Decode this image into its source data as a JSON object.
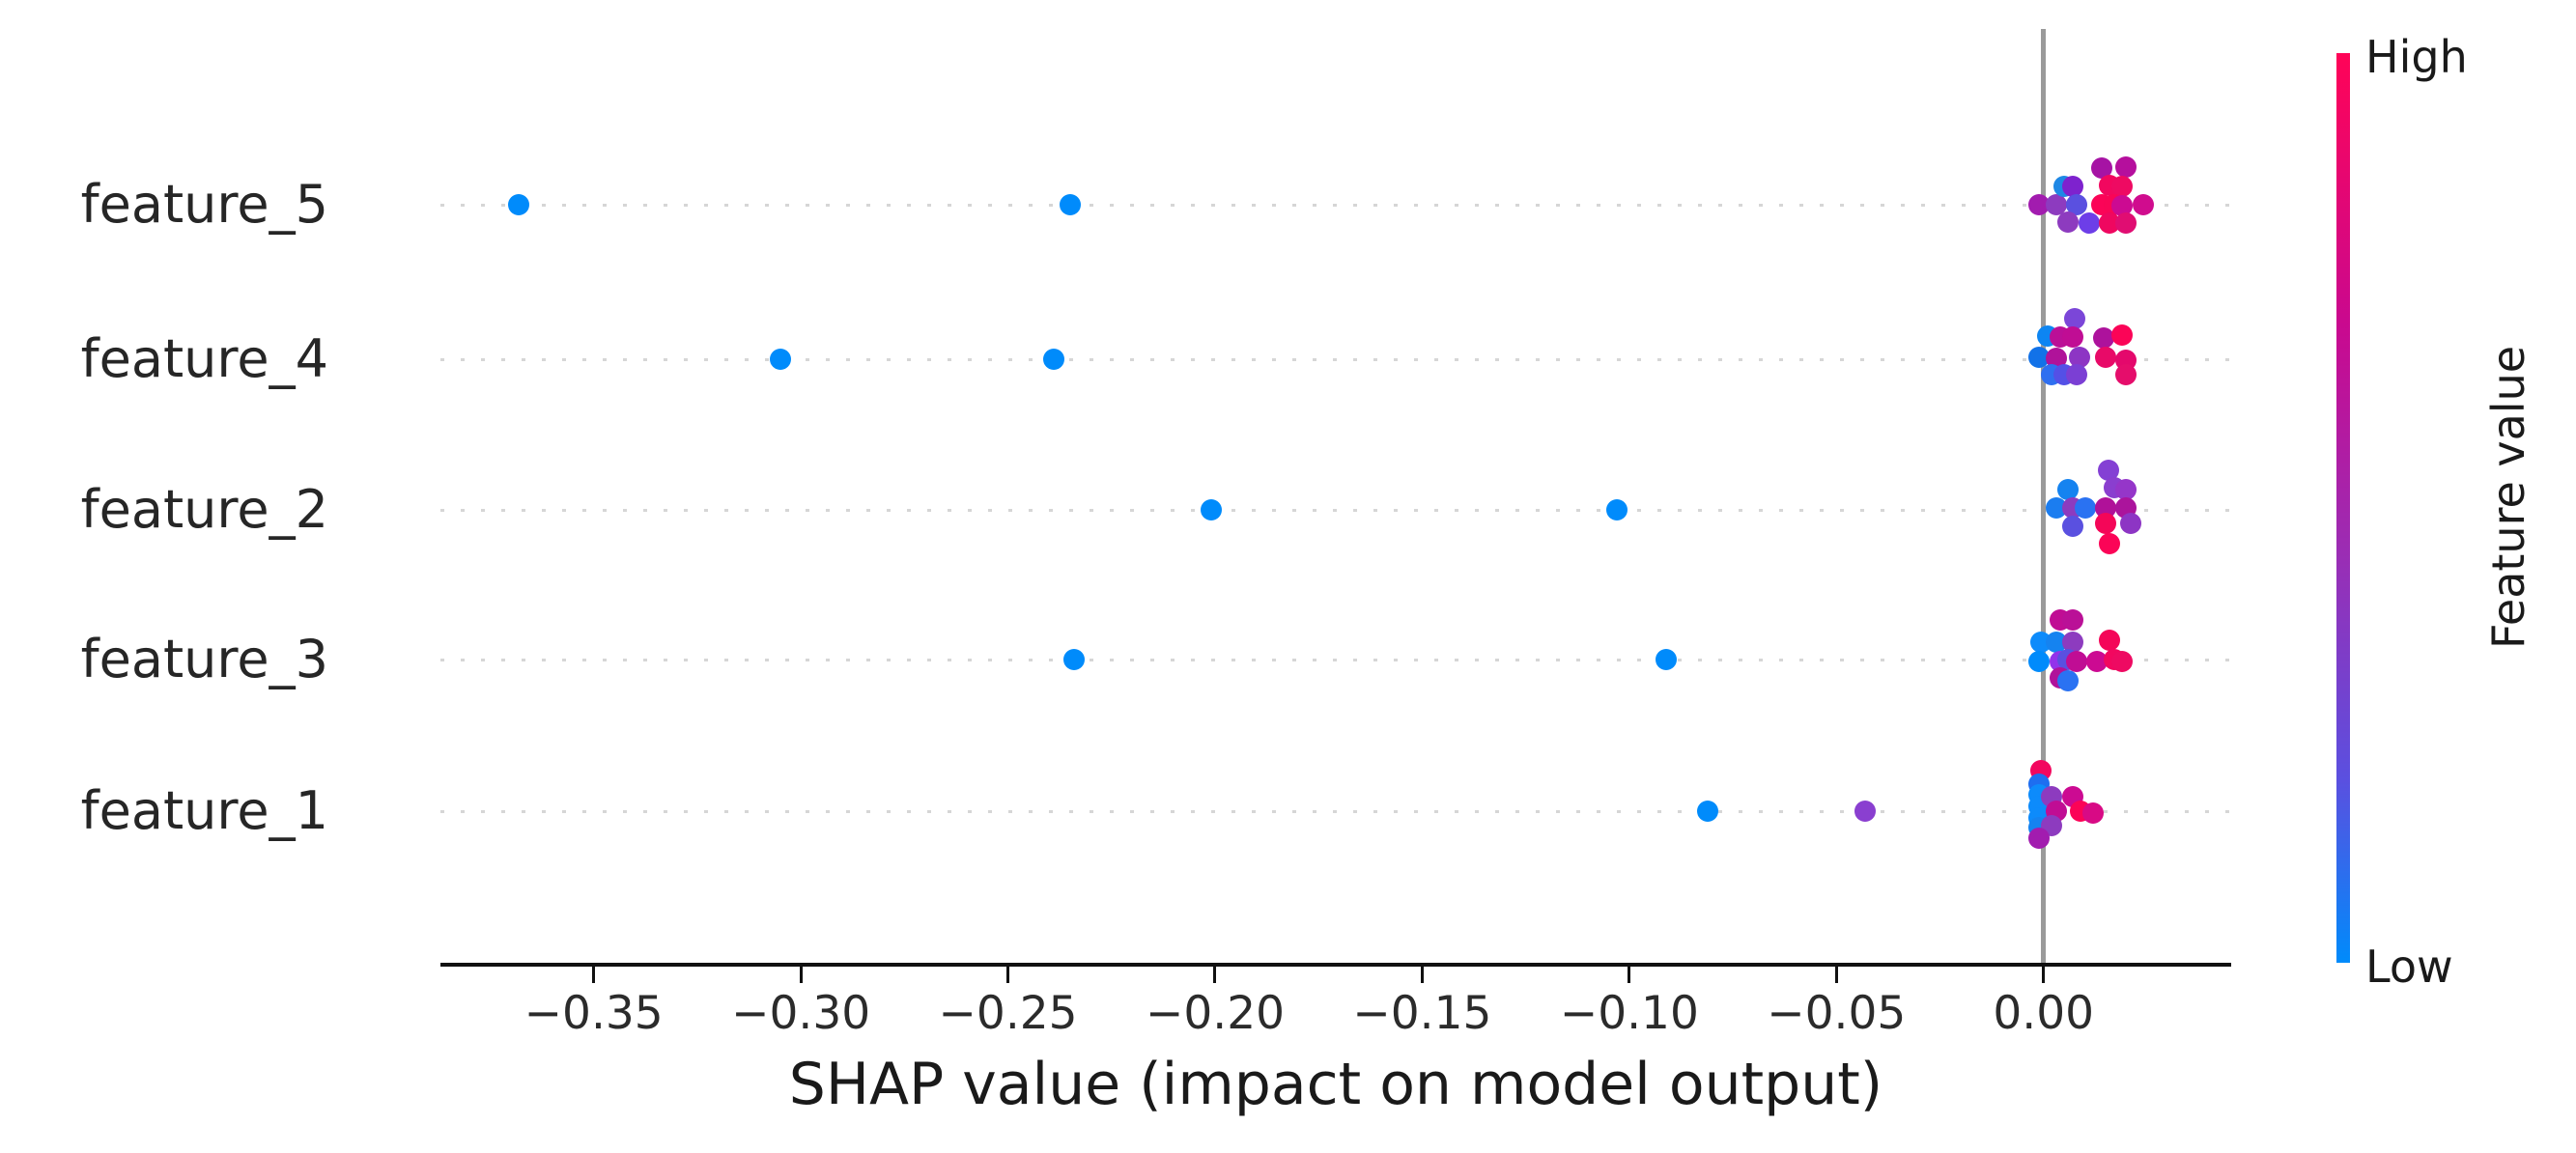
{
  "chart_data": {
    "type": "scatter",
    "subtype": "shap-beeswarm-summary",
    "xlabel": "SHAP value (impact on model output)",
    "xlim": [
      -0.387,
      0.0453
    ],
    "grid": "dotted-row-lines",
    "zero_line_color": "#9a9a9a",
    "gridline_color": "#d6d6d6",
    "axis_color": "#111111",
    "x_ticks": [
      {
        "v": -0.35,
        "label": "−0.35"
      },
      {
        "v": -0.3,
        "label": "−0.30"
      },
      {
        "v": -0.25,
        "label": "−0.25"
      },
      {
        "v": -0.2,
        "label": "−0.20"
      },
      {
        "v": -0.15,
        "label": "−0.15"
      },
      {
        "v": -0.1,
        "label": "−0.10"
      },
      {
        "v": -0.05,
        "label": "−0.05"
      },
      {
        "v": 0.0,
        "label": "0.00"
      }
    ],
    "colorbar": {
      "label": "Feature value",
      "high_label": "High",
      "low_label": "Low",
      "stops": [
        {
          "pos": 0.0,
          "c": "#ff0457"
        },
        {
          "pos": 0.3,
          "c": "#c9098f"
        },
        {
          "pos": 0.55,
          "c": "#9b2db4"
        },
        {
          "pos": 0.8,
          "c": "#5a50e0"
        },
        {
          "pos": 1.0,
          "c": "#008bfb"
        }
      ]
    },
    "features": [
      {
        "name": "feature_5",
        "points": [
          {
            "v": -0.368,
            "dy": 0,
            "c": "#008bfb"
          },
          {
            "v": -0.235,
            "dy": 0,
            "c": "#008bfb"
          },
          {
            "v": -0.001,
            "dy": 0,
            "c": "#a21caf"
          },
          {
            "v": 0.003,
            "dy": 0,
            "c": "#8d3bbf"
          },
          {
            "v": 0.005,
            "dy": -19,
            "c": "#1e88e5"
          },
          {
            "v": 0.007,
            "dy": -19,
            "c": "#7e22ce"
          },
          {
            "v": 0.008,
            "dy": 0,
            "c": "#5a50e0"
          },
          {
            "v": 0.006,
            "dy": 18,
            "c": "#8d3bbf"
          },
          {
            "v": 0.011,
            "dy": 19,
            "c": "#6d3ee8"
          },
          {
            "v": 0.014,
            "dy": -38,
            "c": "#a613a4"
          },
          {
            "v": 0.02,
            "dy": -39,
            "c": "#b50f9d"
          },
          {
            "v": 0.016,
            "dy": -20,
            "c": "#f2075f"
          },
          {
            "v": 0.019,
            "dy": -19,
            "c": "#ee0a62"
          },
          {
            "v": 0.014,
            "dy": 0,
            "c": "#fb0457"
          },
          {
            "v": 0.017,
            "dy": 0,
            "c": "#f90556"
          },
          {
            "v": 0.019,
            "dy": 1,
            "c": "#cc0a92"
          },
          {
            "v": 0.024,
            "dy": 0,
            "c": "#d00c8e"
          },
          {
            "v": 0.016,
            "dy": 19,
            "c": "#ef0760"
          },
          {
            "v": 0.02,
            "dy": 19,
            "c": "#e00d72"
          }
        ]
      },
      {
        "name": "feature_4",
        "points": [
          {
            "v": -0.305,
            "dy": 0,
            "c": "#008bfb"
          },
          {
            "v": -0.239,
            "dy": 0,
            "c": "#008bfb"
          },
          {
            "v": 0.0075,
            "dy": -42,
            "c": "#7b46d8"
          },
          {
            "v": 0.001,
            "dy": -24,
            "c": "#0d85f2"
          },
          {
            "v": 0.004,
            "dy": -23,
            "c": "#bb0f97"
          },
          {
            "v": 0.007,
            "dy": -23,
            "c": "#c00d94"
          },
          {
            "v": 0.0145,
            "dy": -22,
            "c": "#ad129c"
          },
          {
            "v": 0.019,
            "dy": -25,
            "c": "#fb0457"
          },
          {
            "v": -0.001,
            "dy": -2,
            "c": "#1272e8"
          },
          {
            "v": 0.003,
            "dy": -1,
            "c": "#b0129a"
          },
          {
            "v": 0.0086,
            "dy": -2,
            "c": "#8d35c4"
          },
          {
            "v": 0.015,
            "dy": -2,
            "c": "#e80a68"
          },
          {
            "v": 0.02,
            "dy": 1,
            "c": "#e4086c"
          },
          {
            "v": 0.002,
            "dy": 16,
            "c": "#2f6ff0"
          },
          {
            "v": 0.005,
            "dy": 16,
            "c": "#5450e6"
          },
          {
            "v": 0.008,
            "dy": 16,
            "c": "#7b3fd4"
          },
          {
            "v": 0.02,
            "dy": 16,
            "c": "#e50d6b"
          }
        ]
      },
      {
        "name": "feature_2",
        "points": [
          {
            "v": -0.201,
            "dy": 0,
            "c": "#008bfb"
          },
          {
            "v": -0.103,
            "dy": 0,
            "c": "#008bfb"
          },
          {
            "v": 0.0156,
            "dy": -41,
            "c": "#8440d4"
          },
          {
            "v": 0.006,
            "dy": -21,
            "c": "#1583f0"
          },
          {
            "v": 0.017,
            "dy": -23,
            "c": "#8a3ecf"
          },
          {
            "v": 0.02,
            "dy": -21,
            "c": "#9536c9"
          },
          {
            "v": 0.003,
            "dy": -2,
            "c": "#1b7df0"
          },
          {
            "v": 0.007,
            "dy": -2,
            "c": "#8d3bbf"
          },
          {
            "v": 0.01,
            "dy": -2,
            "c": "#2a72f2"
          },
          {
            "v": 0.015,
            "dy": -2,
            "c": "#b01199"
          },
          {
            "v": 0.02,
            "dy": -2,
            "c": "#ab149c"
          },
          {
            "v": 0.007,
            "dy": 17,
            "c": "#5a50e0"
          },
          {
            "v": 0.015,
            "dy": 14,
            "c": "#f40658"
          },
          {
            "v": 0.021,
            "dy": 14,
            "c": "#8d35c4"
          },
          {
            "v": 0.016,
            "dy": 35,
            "c": "#fb0457"
          }
        ]
      },
      {
        "name": "feature_3",
        "points": [
          {
            "v": -0.234,
            "dy": 0,
            "c": "#008bfb"
          },
          {
            "v": -0.091,
            "dy": 0,
            "c": "#008bfb"
          },
          {
            "v": 0.004,
            "dy": -41,
            "c": "#c00d94"
          },
          {
            "v": 0.007,
            "dy": -41,
            "c": "#ba1097"
          },
          {
            "v": -0.0007,
            "dy": -18,
            "c": "#0d8bfb"
          },
          {
            "v": 0.003,
            "dy": -18,
            "c": "#1583f0"
          },
          {
            "v": 0.007,
            "dy": -18,
            "c": "#8d3bbf"
          },
          {
            "v": 0.016,
            "dy": -20,
            "c": "#f40658"
          },
          {
            "v": -0.001,
            "dy": 2,
            "c": "#008bfb"
          },
          {
            "v": 0.004,
            "dy": 2,
            "c": "#9333ea"
          },
          {
            "v": 0.006,
            "dy": 0,
            "c": "#5a50e0"
          },
          {
            "v": 0.008,
            "dy": 2,
            "c": "#c00d94"
          },
          {
            "v": 0.013,
            "dy": 2,
            "c": "#cc0a92"
          },
          {
            "v": 0.017,
            "dy": 0,
            "c": "#f2075f"
          },
          {
            "v": 0.019,
            "dy": 2,
            "c": "#ee0a62"
          },
          {
            "v": 0.004,
            "dy": 19,
            "c": "#b0129a"
          },
          {
            "v": 0.006,
            "dy": 22,
            "c": "#2a72f2"
          }
        ]
      },
      {
        "name": "feature_1",
        "points": [
          {
            "v": -0.081,
            "dy": 0,
            "c": "#008bfb"
          },
          {
            "v": -0.043,
            "dy": 0,
            "c": "#8a3fd0"
          },
          {
            "v": -0.0007,
            "dy": -42,
            "c": "#f2075f"
          },
          {
            "v": -0.001,
            "dy": -28,
            "c": "#1e6ef0"
          },
          {
            "v": -0.001,
            "dy": -17,
            "c": "#0d8bfb"
          },
          {
            "v": -0.001,
            "dy": -5,
            "c": "#0d8bfb"
          },
          {
            "v": -0.001,
            "dy": 7,
            "c": "#0d8bfb"
          },
          {
            "v": -0.001,
            "dy": 17,
            "c": "#1583f0"
          },
          {
            "v": 0.002,
            "dy": -15,
            "c": "#8d3bbf"
          },
          {
            "v": 0.007,
            "dy": -15,
            "c": "#cc0a92"
          },
          {
            "v": 0.003,
            "dy": 0,
            "c": "#c00d94"
          },
          {
            "v": 0.009,
            "dy": 0,
            "c": "#fb0457"
          },
          {
            "v": 0.012,
            "dy": 2,
            "c": "#d80a85"
          },
          {
            "v": 0.002,
            "dy": 15,
            "c": "#8d3bbf"
          },
          {
            "v": -0.001,
            "dy": 28,
            "c": "#a21caf"
          }
        ]
      }
    ]
  }
}
